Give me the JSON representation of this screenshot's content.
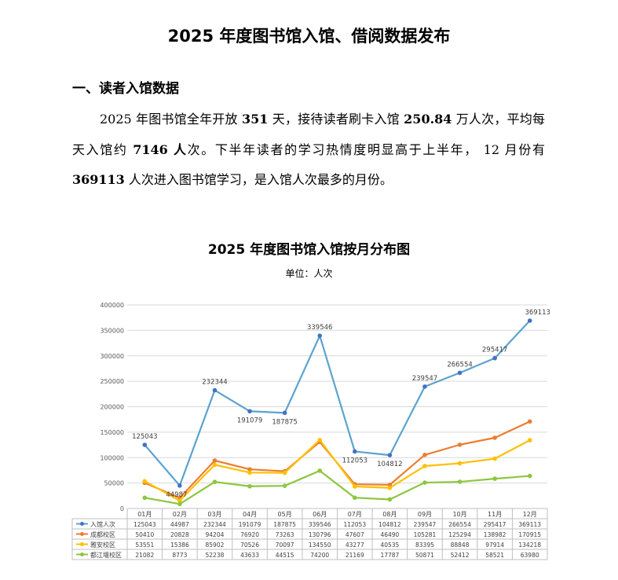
{
  "document": {
    "title": "2025 年度图书馆入馆、借阅数据发布",
    "section_heading": "一、读者入馆数据",
    "paragraph": [
      {
        "text": "2025 年图书馆全年开放 ",
        "bold": false
      },
      {
        "text": "351",
        "bold": true
      },
      {
        "text": " 天，接待读者刷卡入馆 ",
        "bold": false
      },
      {
        "text": "250.84",
        "bold": true
      },
      {
        "text": " 万人次，平均每天入馆约 ",
        "bold": false
      },
      {
        "text": "7146 人",
        "bold": true
      },
      {
        "text": "次。下半年读者的学习热情度明显高于上半年，  12 月份有 ",
        "bold": false
      },
      {
        "text": "369113",
        "bold": true
      },
      {
        "text": " 人次进入图书馆学习，是入馆人次最多的月份。",
        "bold": false
      }
    ]
  },
  "chart_data": {
    "type": "line",
    "title": "2025 年度图书馆入馆按月分布图",
    "subtitle": "单位：人次",
    "categories": [
      "01月",
      "02月",
      "03月",
      "04月",
      "05月",
      "06月",
      "07月",
      "08月",
      "09月",
      "10月",
      "11月",
      "12月"
    ],
    "ylim": [
      0,
      400000
    ],
    "yticks": [
      0,
      50000,
      100000,
      150000,
      200000,
      250000,
      300000,
      350000,
      400000
    ],
    "grid": true,
    "legend": "data-table",
    "series": [
      {
        "name": "入馆人次",
        "color": "#4472C4",
        "line_color": "#5BA3CF",
        "labels_on_chart": true,
        "values": [
          125043,
          44987,
          232344,
          191079,
          187875,
          339546,
          112053,
          104812,
          239547,
          266554,
          295417,
          369113
        ]
      },
      {
        "name": "成都校区",
        "color": "#ED7D31",
        "line_color": "#ED7D31",
        "labels_on_chart": false,
        "values": [
          50410,
          20828,
          94204,
          76920,
          73263,
          130796,
          47607,
          46490,
          105281,
          125294,
          138982,
          170915
        ]
      },
      {
        "name": "雅安校区",
        "color": "#FFC000",
        "line_color": "#FFC000",
        "labels_on_chart": false,
        "values": [
          53551,
          15386,
          85902,
          70526,
          70097,
          134550,
          43277,
          40535,
          83395,
          88848,
          97914,
          134218
        ]
      },
      {
        "name": "都江堰校区",
        "color": "#8DC63F",
        "line_color": "#8DC63F",
        "labels_on_chart": false,
        "values": [
          21082,
          8773,
          52238,
          43633,
          44515,
          74200,
          21169,
          17787,
          50871,
          52412,
          58521,
          63980
        ]
      }
    ]
  }
}
